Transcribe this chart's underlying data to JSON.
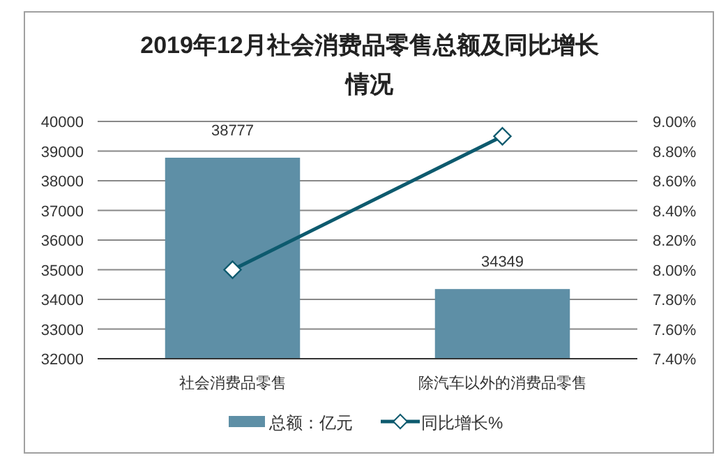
{
  "chart_data": {
    "type": "bar",
    "title": "2019年12月社会消费品零售总额及同比增长情况",
    "categories": [
      "社会消费品零售",
      "除汽车以外的消费品零售"
    ],
    "series": [
      {
        "name": "总额：亿元",
        "type": "bar",
        "color": "#5e8fa6",
        "values": [
          38777,
          34349
        ],
        "value_labels": [
          "38777",
          "34349"
        ]
      },
      {
        "name": "同比增长%",
        "type": "line",
        "axis": "y2",
        "color": "#0d5a6e",
        "values": [
          8.0,
          8.9
        ],
        "marker": "diamond"
      }
    ],
    "ylim": [
      32000,
      40000
    ],
    "yticks": [
      32000,
      33000,
      34000,
      35000,
      36000,
      37000,
      38000,
      39000,
      40000
    ],
    "y2lim": [
      7.4,
      9.0
    ],
    "y2ticks": [
      {
        "value": 7.4,
        "label": "7.40%"
      },
      {
        "value": 7.6,
        "label": "7.60%"
      },
      {
        "value": 7.8,
        "label": "7.80%"
      },
      {
        "value": 8.0,
        "label": "8.00%"
      },
      {
        "value": 8.2,
        "label": "8.20%"
      },
      {
        "value": 8.4,
        "label": "8.40%"
      },
      {
        "value": 8.6,
        "label": "8.60%"
      },
      {
        "value": 8.8,
        "label": "8.80%"
      },
      {
        "value": 9.0,
        "label": "9.00%"
      }
    ],
    "grid": "y",
    "legend": "bottom"
  }
}
